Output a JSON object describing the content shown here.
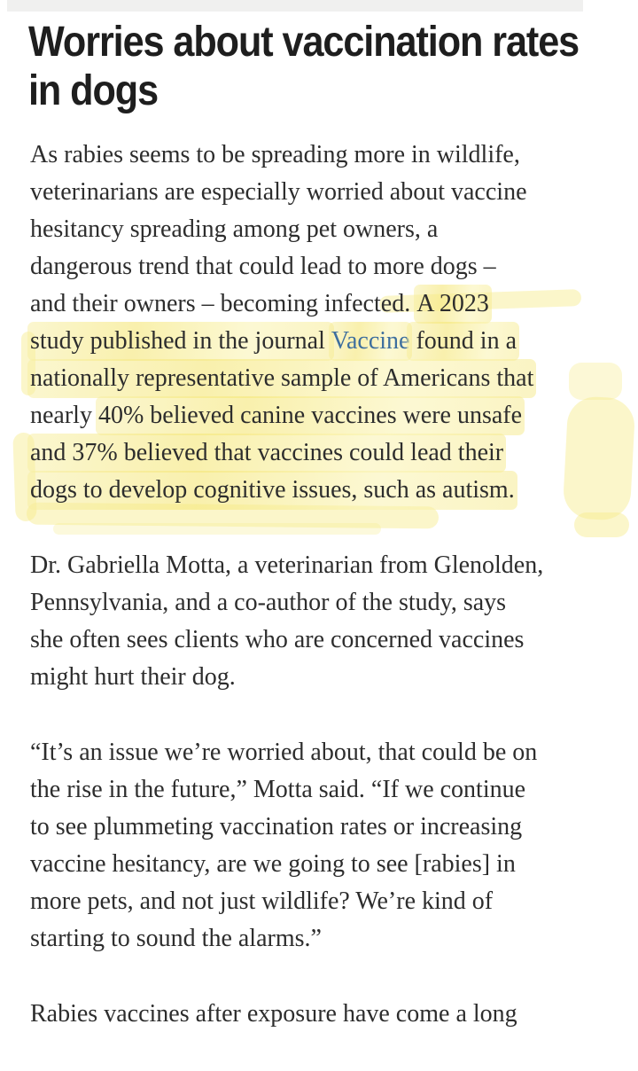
{
  "colors": {
    "headline_text": "#1e1e1e",
    "body_text": "#2d2d2d",
    "link_blue": "#3e6f9e",
    "highlight_yellow": "#f5e77e",
    "top_strip_gray": "#f0f0ef",
    "page_background": "#ffffff"
  },
  "article": {
    "heading": "Worries about vaccination rates in dogs",
    "paragraphs": [
      {
        "lines": [
          [
            {
              "t": "As rabies seems to be spreading more in wildlife,"
            }
          ],
          [
            {
              "t": "veterinarians are especially worried about vaccine"
            }
          ],
          [
            {
              "t": "hesitancy spreading among pet owners, a"
            }
          ],
          [
            {
              "t": "dangerous trend that could lead to more dogs –"
            }
          ],
          [
            {
              "t": "and their owners – becoming infected. "
            },
            {
              "t": "A 2023",
              "hl": true
            }
          ],
          [
            {
              "t": "study published in the journal ",
              "hl": true
            },
            {
              "t": "Vaccine",
              "hl": true,
              "link": true
            },
            {
              "t": " found in a",
              "hl": true
            }
          ],
          [
            {
              "t": "nationally representative sample of Americans that",
              "hl": true
            }
          ],
          [
            {
              "t": "nearly "
            },
            {
              "t": "40% believed canine vaccines were unsafe",
              "hl": true
            }
          ],
          [
            {
              "t": "and 37% believed that vaccines could lead their",
              "hl": true
            }
          ],
          [
            {
              "t": "dogs to develop cognitive issues, such as autism.",
              "hl": true
            }
          ]
        ]
      },
      {
        "lines": [
          [
            {
              "t": "Dr. Gabriella Motta, a veterinarian from Glenolden,"
            }
          ],
          [
            {
              "t": "Pennsylvania, and a co-author of the study, says"
            }
          ],
          [
            {
              "t": "she often sees clients who are concerned vaccines"
            }
          ],
          [
            {
              "t": "might hurt their dog."
            }
          ]
        ]
      },
      {
        "lines": [
          [
            {
              "t": "“It’s an issue we’re worried about, that could be on"
            }
          ],
          [
            {
              "t": "the rise in the future,” Motta said. “If we continue"
            }
          ],
          [
            {
              "t": "to see plummeting vaccination rates or increasing"
            }
          ],
          [
            {
              "t": "vaccine hesitancy, are we going to see [rabies] in"
            }
          ],
          [
            {
              "t": "more pets, and not just wildlife? We’re kind of"
            }
          ],
          [
            {
              "t": "starting to sound the alarms.”"
            }
          ]
        ]
      },
      {
        "lines": [
          [
            {
              "t": "Rabies vaccines after exposure have come a long"
            }
          ]
        ]
      }
    ]
  }
}
